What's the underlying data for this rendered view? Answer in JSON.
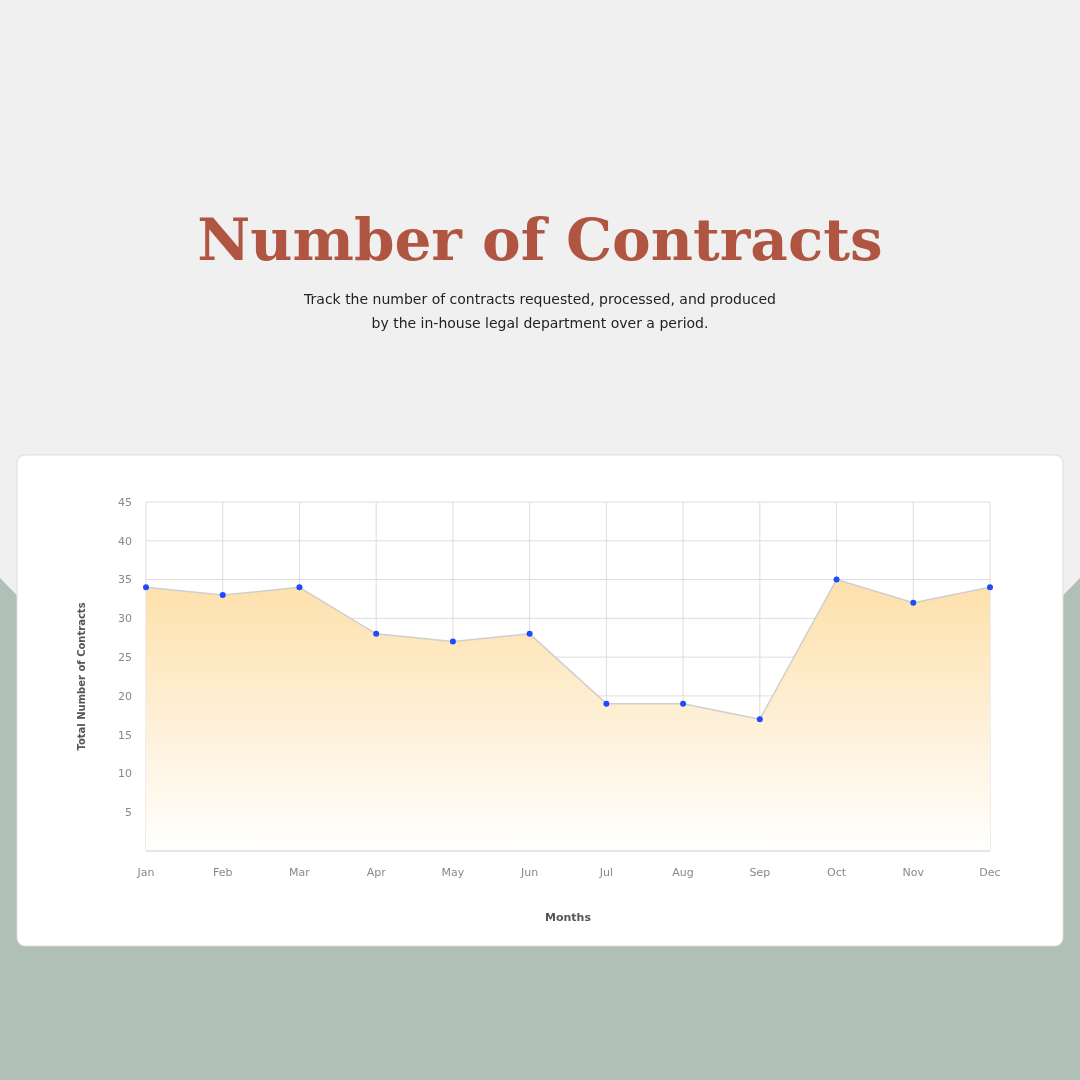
{
  "chart_data": {
    "type": "area",
    "title": "Number of Contracts",
    "subtitle": "Track the number of contracts requested, processed, and produced by the in-house legal department over a period.",
    "xlabel": "Months",
    "ylabel": "Total Number of Contracts",
    "categories": [
      "Jan",
      "Feb",
      "Mar",
      "Apr",
      "May",
      "Jun",
      "Jul",
      "Aug",
      "Sep",
      "Oct",
      "Nov",
      "Dec"
    ],
    "series": [
      {
        "color": "#1f4bff",
        "values": [
          34,
          33,
          34,
          28,
          27,
          28,
          19,
          19,
          17,
          35,
          32,
          34
        ]
      }
    ],
    "ylim": [
      0,
      45
    ],
    "yticks": [
      5,
      10,
      15,
      20,
      25,
      30,
      35,
      40,
      45
    ],
    "grid": true,
    "marker": "circle"
  }
}
